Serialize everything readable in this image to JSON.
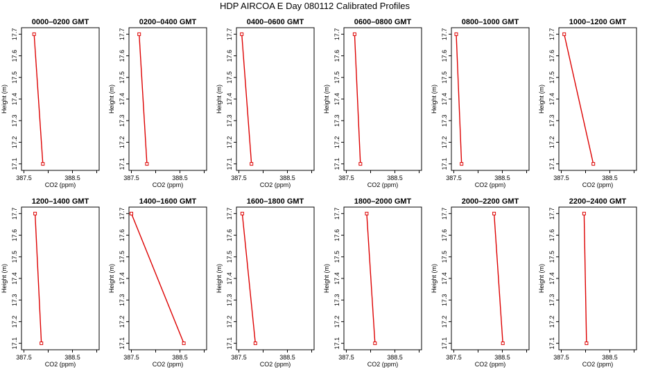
{
  "figure": {
    "title": "HDP  AIRCOA E  Day 080112  Calibrated Profiles"
  },
  "colors": {
    "series_line": "#dd0000",
    "series_marker": "#dd0000",
    "axis": "#000000",
    "background": "#ffffff"
  },
  "chart_data": [
    {
      "type": "line",
      "title": "0000–0200 GMT",
      "xlabel": "CO2 (ppm)",
      "ylabel": "Height (m)",
      "xlim": [
        387.45,
        389.05
      ],
      "ylim": [
        17.07,
        17.73
      ],
      "xticks": [
        387.5,
        388.0,
        388.5,
        389.0
      ],
      "xtick_labels": [
        "387.5",
        "",
        "388.5",
        ""
      ],
      "yticks": [
        17.1,
        17.2,
        17.3,
        17.4,
        17.5,
        17.6,
        17.7
      ],
      "ytick_labels": [
        "17.1",
        "17.2",
        "17.3",
        "17.4",
        "17.5",
        "17.6",
        "17.7"
      ],
      "series": [
        {
          "x": [
            387.71,
            387.89
          ],
          "y": [
            17.7,
            17.1
          ]
        }
      ],
      "grid": false
    },
    {
      "type": "line",
      "title": "0200–0400 GMT",
      "xlabel": "CO2 (ppm)",
      "ylabel": "Height (m)",
      "xlim": [
        387.45,
        389.05
      ],
      "ylim": [
        17.07,
        17.73
      ],
      "xticks": [
        387.5,
        388.0,
        388.5,
        389.0
      ],
      "xtick_labels": [
        "387.5",
        "",
        "388.5",
        ""
      ],
      "yticks": [
        17.1,
        17.2,
        17.3,
        17.4,
        17.5,
        17.6,
        17.7
      ],
      "ytick_labels": [
        "17.1",
        "17.2",
        "17.3",
        "17.4",
        "17.5",
        "17.6",
        "17.7"
      ],
      "series": [
        {
          "x": [
            387.66,
            387.82
          ],
          "y": [
            17.7,
            17.1
          ]
        }
      ],
      "grid": false
    },
    {
      "type": "line",
      "title": "0400–0600 GMT",
      "xlabel": "CO2 (ppm)",
      "ylabel": "Height (m)",
      "xlim": [
        387.45,
        389.05
      ],
      "ylim": [
        17.07,
        17.73
      ],
      "xticks": [
        387.5,
        388.0,
        388.5,
        389.0
      ],
      "xtick_labels": [
        "387.5",
        "",
        "388.5",
        ""
      ],
      "yticks": [
        17.1,
        17.2,
        17.3,
        17.4,
        17.5,
        17.6,
        17.7
      ],
      "ytick_labels": [
        "17.1",
        "17.2",
        "17.3",
        "17.4",
        "17.5",
        "17.6",
        "17.7"
      ],
      "series": [
        {
          "x": [
            387.56,
            387.76
          ],
          "y": [
            17.7,
            17.1
          ]
        }
      ],
      "grid": false
    },
    {
      "type": "line",
      "title": "0600–0800 GMT",
      "xlabel": "CO2 (ppm)",
      "ylabel": "Height (m)",
      "xlim": [
        387.45,
        389.05
      ],
      "ylim": [
        17.07,
        17.73
      ],
      "xticks": [
        387.5,
        388.0,
        388.5,
        389.0
      ],
      "xtick_labels": [
        "387.5",
        "",
        "388.5",
        ""
      ],
      "yticks": [
        17.1,
        17.2,
        17.3,
        17.4,
        17.5,
        17.6,
        17.7
      ],
      "ytick_labels": [
        "17.1",
        "17.2",
        "17.3",
        "17.4",
        "17.5",
        "17.6",
        "17.7"
      ],
      "series": [
        {
          "x": [
            387.67,
            387.79
          ],
          "y": [
            17.7,
            17.1
          ]
        }
      ],
      "grid": false
    },
    {
      "type": "line",
      "title": "0800–1000 GMT",
      "xlabel": "CO2 (ppm)",
      "ylabel": "Height (m)",
      "xlim": [
        387.45,
        389.05
      ],
      "ylim": [
        17.07,
        17.73
      ],
      "xticks": [
        387.5,
        388.0,
        388.5,
        389.0
      ],
      "xtick_labels": [
        "387.5",
        "",
        "388.5",
        ""
      ],
      "yticks": [
        17.1,
        17.2,
        17.3,
        17.4,
        17.5,
        17.6,
        17.7
      ],
      "ytick_labels": [
        "17.1",
        "17.2",
        "17.3",
        "17.4",
        "17.5",
        "17.6",
        "17.7"
      ],
      "series": [
        {
          "x": [
            387.55,
            387.66
          ],
          "y": [
            17.7,
            17.1
          ]
        }
      ],
      "grid": false
    },
    {
      "type": "line",
      "title": "1000–1200 GMT",
      "xlabel": "CO2 (ppm)",
      "ylabel": "Height (m)",
      "xlim": [
        387.45,
        389.05
      ],
      "ylim": [
        17.07,
        17.73
      ],
      "xticks": [
        387.5,
        388.0,
        388.5,
        389.0
      ],
      "xtick_labels": [
        "387.5",
        "",
        "388.5",
        ""
      ],
      "yticks": [
        17.1,
        17.2,
        17.3,
        17.4,
        17.5,
        17.6,
        17.7
      ],
      "ytick_labels": [
        "17.1",
        "17.2",
        "17.3",
        "17.4",
        "17.5",
        "17.6",
        "17.7"
      ],
      "series": [
        {
          "x": [
            387.56,
            388.16
          ],
          "y": [
            17.7,
            17.1
          ]
        }
      ],
      "grid": false
    },
    {
      "type": "line",
      "title": "1200–1400 GMT",
      "xlabel": "CO2 (ppm)",
      "ylabel": "Height (m)",
      "xlim": [
        387.45,
        389.05
      ],
      "ylim": [
        17.07,
        17.73
      ],
      "xticks": [
        387.5,
        388.0,
        388.5,
        389.0
      ],
      "xtick_labels": [
        "387.5",
        "",
        "388.5",
        ""
      ],
      "yticks": [
        17.1,
        17.2,
        17.3,
        17.4,
        17.5,
        17.6,
        17.7
      ],
      "ytick_labels": [
        "17.1",
        "17.2",
        "17.3",
        "17.4",
        "17.5",
        "17.6",
        "17.7"
      ],
      "series": [
        {
          "x": [
            387.73,
            387.86
          ],
          "y": [
            17.7,
            17.1
          ]
        }
      ],
      "grid": false
    },
    {
      "type": "line",
      "title": "1400–1600 GMT",
      "xlabel": "CO2 (ppm)",
      "ylabel": "Height (m)",
      "xlim": [
        387.45,
        389.05
      ],
      "ylim": [
        17.07,
        17.73
      ],
      "xticks": [
        387.5,
        388.0,
        388.5,
        389.0
      ],
      "xtick_labels": [
        "387.5",
        "",
        "388.5",
        ""
      ],
      "yticks": [
        17.1,
        17.2,
        17.3,
        17.4,
        17.5,
        17.6,
        17.7
      ],
      "ytick_labels": [
        "17.1",
        "17.2",
        "17.3",
        "17.4",
        "17.5",
        "17.6",
        "17.7"
      ],
      "series": [
        {
          "x": [
            387.5,
            388.58
          ],
          "y": [
            17.7,
            17.1
          ]
        }
      ],
      "grid": false
    },
    {
      "type": "line",
      "title": "1600–1800 GMT",
      "xlabel": "CO2 (ppm)",
      "ylabel": "Height (m)",
      "xlim": [
        387.45,
        389.05
      ],
      "ylim": [
        17.07,
        17.73
      ],
      "xticks": [
        387.5,
        388.0,
        388.5,
        389.0
      ],
      "xtick_labels": [
        "387.5",
        "",
        "388.5",
        ""
      ],
      "yticks": [
        17.1,
        17.2,
        17.3,
        17.4,
        17.5,
        17.6,
        17.7
      ],
      "ytick_labels": [
        "17.1",
        "17.2",
        "17.3",
        "17.4",
        "17.5",
        "17.6",
        "17.7"
      ],
      "series": [
        {
          "x": [
            387.57,
            387.84
          ],
          "y": [
            17.7,
            17.1
          ]
        }
      ],
      "grid": false
    },
    {
      "type": "line",
      "title": "1800–2000 GMT",
      "xlabel": "CO2 (ppm)",
      "ylabel": "Height (m)",
      "xlim": [
        387.45,
        389.05
      ],
      "ylim": [
        17.07,
        17.73
      ],
      "xticks": [
        387.5,
        388.0,
        388.5,
        389.0
      ],
      "xtick_labels": [
        "387.5",
        "",
        "388.5",
        ""
      ],
      "yticks": [
        17.1,
        17.2,
        17.3,
        17.4,
        17.5,
        17.6,
        17.7
      ],
      "ytick_labels": [
        "17.1",
        "17.2",
        "17.3",
        "17.4",
        "17.5",
        "17.6",
        "17.7"
      ],
      "series": [
        {
          "x": [
            387.92,
            388.09
          ],
          "y": [
            17.7,
            17.1
          ]
        }
      ],
      "grid": false
    },
    {
      "type": "line",
      "title": "2000–2200 GMT",
      "xlabel": "CO2 (ppm)",
      "ylabel": "Height (m)",
      "xlim": [
        387.45,
        389.05
      ],
      "ylim": [
        17.07,
        17.73
      ],
      "xticks": [
        387.5,
        388.0,
        388.5,
        389.0
      ],
      "xtick_labels": [
        "387.5",
        "",
        "388.5",
        ""
      ],
      "yticks": [
        17.1,
        17.2,
        17.3,
        17.4,
        17.5,
        17.6,
        17.7
      ],
      "ytick_labels": [
        "17.1",
        "17.2",
        "17.3",
        "17.4",
        "17.5",
        "17.6",
        "17.7"
      ],
      "series": [
        {
          "x": [
            388.33,
            388.51
          ],
          "y": [
            17.7,
            17.1
          ]
        }
      ],
      "grid": false
    },
    {
      "type": "line",
      "title": "2200–2400 GMT",
      "xlabel": "CO2 (ppm)",
      "ylabel": "Height (m)",
      "xlim": [
        387.45,
        389.05
      ],
      "ylim": [
        17.07,
        17.73
      ],
      "xticks": [
        387.5,
        388.0,
        388.5,
        389.0
      ],
      "xtick_labels": [
        "387.5",
        "",
        "388.5",
        ""
      ],
      "yticks": [
        17.1,
        17.2,
        17.3,
        17.4,
        17.5,
        17.6,
        17.7
      ],
      "ytick_labels": [
        "17.1",
        "17.2",
        "17.3",
        "17.4",
        "17.5",
        "17.6",
        "17.7"
      ],
      "series": [
        {
          "x": [
            387.97,
            388.02
          ],
          "y": [
            17.7,
            17.1
          ]
        }
      ],
      "grid": false
    }
  ]
}
